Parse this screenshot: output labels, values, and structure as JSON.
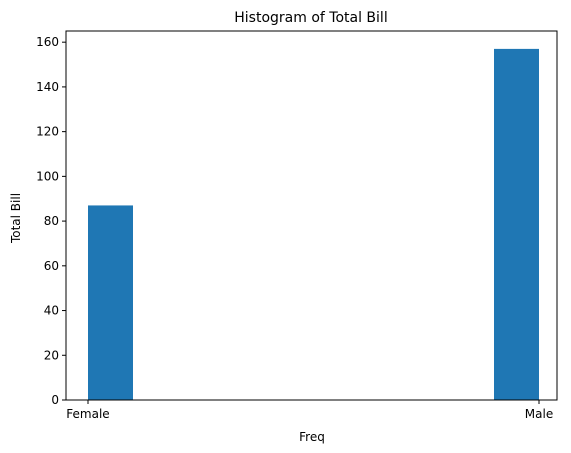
{
  "chart_data": {
    "type": "bar",
    "title": "Histogram of Total Bill",
    "xlabel": "Freq",
    "ylabel": "Total Bill",
    "categories": [
      "Female",
      "Male"
    ],
    "values": [
      87,
      157
    ],
    "ylim": [
      0,
      165
    ],
    "yticks": [
      0,
      20,
      40,
      60,
      80,
      100,
      120,
      140,
      160
    ],
    "grid": false,
    "bar_color": "#1f77b4"
  }
}
